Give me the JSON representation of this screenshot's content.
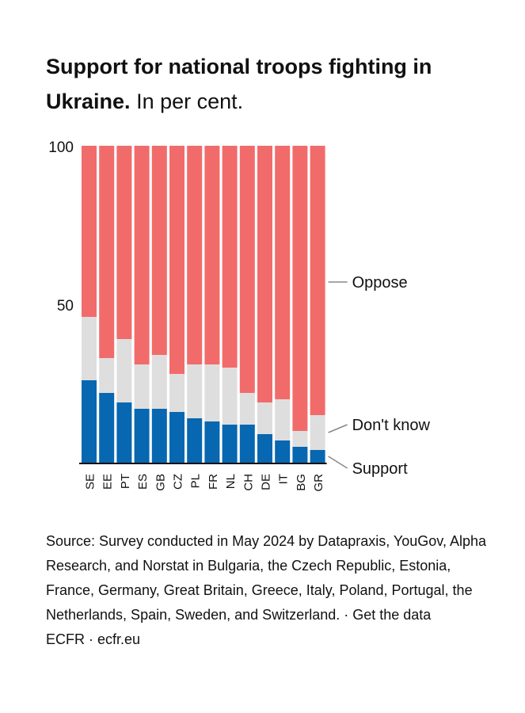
{
  "title": {
    "bold": "Support for national troops fighting in Ukraine.",
    "rest": " In per cent."
  },
  "chart_data": {
    "type": "bar",
    "stacked": true,
    "categories": [
      "SE",
      "EE",
      "PT",
      "ES",
      "GB",
      "CZ",
      "PL",
      "FR",
      "NL",
      "CH",
      "DE",
      "IT",
      "BG",
      "GR"
    ],
    "series": [
      {
        "name": "Support",
        "color": "#0767b0",
        "values": [
          26,
          22,
          19,
          17,
          17,
          16,
          14,
          13,
          12,
          12,
          9,
          7,
          5,
          4
        ]
      },
      {
        "name": "Don't know",
        "color": "#dedede",
        "values": [
          20,
          11,
          20,
          14,
          17,
          12,
          17,
          18,
          18,
          10,
          10,
          13,
          5,
          11
        ]
      },
      {
        "name": "Oppose",
        "color": "#f26b6b",
        "values": [
          54,
          67,
          61,
          69,
          66,
          72,
          69,
          69,
          70,
          78,
          81,
          80,
          90,
          85
        ]
      }
    ],
    "ylim": [
      0,
      100
    ],
    "yticks": [
      "100",
      "50"
    ],
    "ytick_values": [
      100,
      50
    ],
    "legend": "right, direct labels"
  },
  "footer": {
    "source": "Source: Survey conducted in May 2024 by Datapraxis, YouGov, Alpha Research, and Norstat in Bulgaria, the Czech Republic, Estonia, France, Germany, Great Britain, Greece, Italy, Poland, Portugal, the Netherlands, Spain, Sweden, and Switzerland. · Get the data",
    "credit": "ECFR · ecfr.eu"
  }
}
